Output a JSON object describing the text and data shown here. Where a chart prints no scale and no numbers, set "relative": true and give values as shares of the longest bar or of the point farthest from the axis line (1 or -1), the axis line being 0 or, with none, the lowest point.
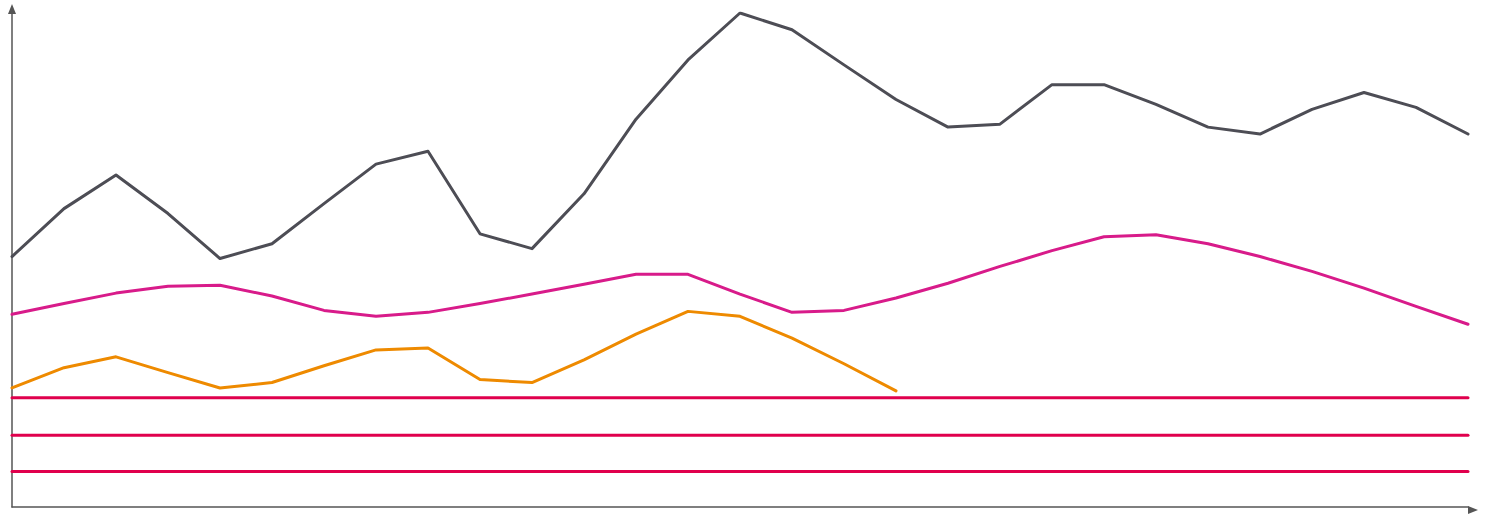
{
  "chart_data": {
    "type": "line",
    "relative": true,
    "grid": false,
    "marker": "none",
    "line_style": "solid",
    "categories": [
      null,
      null,
      null,
      null,
      null,
      null,
      null,
      null,
      null,
      null,
      null,
      null,
      null,
      null,
      null,
      null,
      null,
      null,
      null,
      null,
      null,
      null,
      null,
      null,
      null,
      null,
      null,
      null,
      null
    ],
    "series": [
      {
        "color": "#4d4d55",
        "values": [
          0.507,
          0.604,
          0.672,
          0.594,
          0.503,
          0.533,
          0.614,
          0.694,
          0.72,
          0.553,
          0.523,
          0.634,
          0.785,
          0.905,
          1.0,
          0.966,
          0.895,
          0.825,
          0.769,
          0.775,
          0.855,
          0.855,
          0.815,
          0.769,
          0.755,
          0.805,
          0.839,
          0.809,
          0.755
        ]
      },
      {
        "color": "#d81b8a",
        "values": [
          0.39,
          0.412,
          0.433,
          0.447,
          0.449,
          0.427,
          0.398,
          0.386,
          0.394,
          0.412,
          0.431,
          0.451,
          0.471,
          0.471,
          0.431,
          0.394,
          0.398,
          0.423,
          0.453,
          0.487,
          0.519,
          0.547,
          0.551,
          0.533,
          0.507,
          0.477,
          0.443,
          0.406,
          0.37
        ]
      },
      {
        "color": "#ee8a00",
        "values": [
          0.241,
          0.282,
          0.304,
          0.272,
          0.241,
          0.252,
          0.286,
          0.318,
          0.322,
          0.258,
          0.252,
          0.298,
          0.35,
          0.396,
          0.386,
          0.342,
          0.29,
          0.235,
          null,
          null,
          null,
          null,
          null,
          null,
          null,
          null,
          null,
          null,
          null
        ]
      },
      {
        "color": "#e0004d",
        "values": [
          0.221,
          0.221,
          0.221,
          0.221,
          0.221,
          0.221,
          0.221,
          0.221,
          0.221,
          0.221,
          0.221,
          0.221,
          0.221,
          0.221,
          0.221,
          0.221,
          0.221,
          0.221,
          0.221,
          0.221,
          0.221,
          0.221,
          0.221,
          0.221,
          0.221,
          0.221,
          0.221,
          0.221,
          0.221
        ]
      },
      {
        "color": "#e0004d",
        "values": [
          0.145,
          0.145,
          0.145,
          0.145,
          0.145,
          0.145,
          0.145,
          0.145,
          0.145,
          0.145,
          0.145,
          0.145,
          0.145,
          0.145,
          0.145,
          0.145,
          0.145,
          0.145,
          0.145,
          0.145,
          0.145,
          0.145,
          0.145,
          0.145,
          0.145,
          0.145,
          0.145,
          0.145,
          0.145
        ]
      },
      {
        "color": "#e0004d",
        "values": [
          0.072,
          0.072,
          0.072,
          0.072,
          0.072,
          0.072,
          0.072,
          0.072,
          0.072,
          0.072,
          0.072,
          0.072,
          0.072,
          0.072,
          0.072,
          0.072,
          0.072,
          0.072,
          0.072,
          0.072,
          0.072,
          0.072,
          0.072,
          0.072,
          0.072,
          0.072,
          0.072,
          0.072,
          0.072
        ]
      }
    ]
  }
}
